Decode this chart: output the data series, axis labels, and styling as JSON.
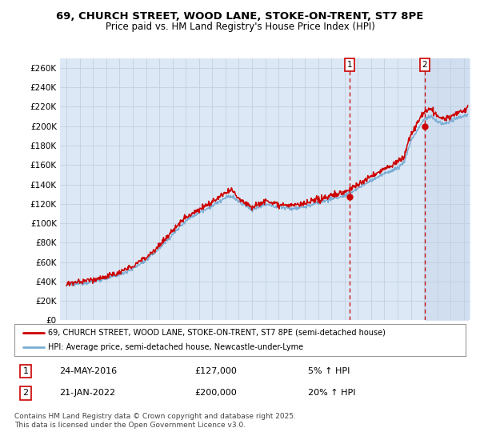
{
  "title": "69, CHURCH STREET, WOOD LANE, STOKE-ON-TRENT, ST7 8PE",
  "subtitle": "Price paid vs. HM Land Registry's House Price Index (HPI)",
  "legend_line1": "69, CHURCH STREET, WOOD LANE, STOKE-ON-TRENT, ST7 8PE (semi-detached house)",
  "legend_line2": "HPI: Average price, semi-detached house, Newcastle-under-Lyme",
  "annotation1_label": "1",
  "annotation1_date": "24-MAY-2016",
  "annotation1_price": "£127,000",
  "annotation1_pct": "5% ↑ HPI",
  "annotation2_label": "2",
  "annotation2_date": "21-JAN-2022",
  "annotation2_price": "£200,000",
  "annotation2_pct": "20% ↑ HPI",
  "footer": "Contains HM Land Registry data © Crown copyright and database right 2025.\nThis data is licensed under the Open Government Licence v3.0.",
  "line_color_price": "#cc0000",
  "line_color_hpi": "#7aadd4",
  "background_plot": "#dce8f5",
  "background_shade": "#c8d8ee",
  "vline_color": "#cc0000",
  "annotation_box_edge": "#cc0000",
  "annotation_box_face": "white",
  "annotation_text_color": "black",
  "ylim": [
    0,
    270000
  ],
  "yticks": [
    0,
    20000,
    40000,
    60000,
    80000,
    100000,
    120000,
    140000,
    160000,
    180000,
    200000,
    220000,
    240000,
    260000
  ],
  "sale1_x": 2016.38,
  "sale1_y": 127000,
  "sale2_x": 2022.05,
  "sale2_y": 200000,
  "xmin": 1995,
  "xmax": 2025.5
}
